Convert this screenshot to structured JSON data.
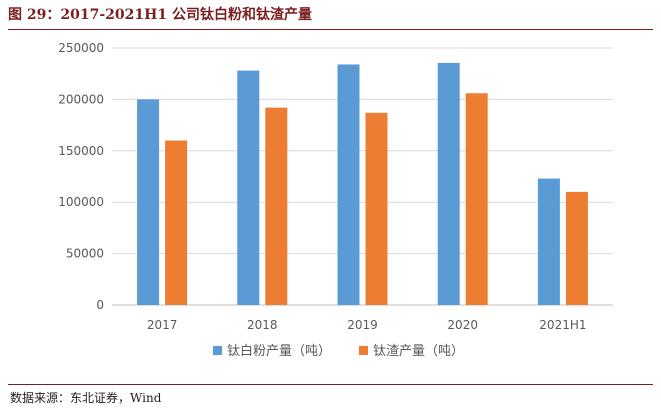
{
  "figure": {
    "title": "图 29：2017-2021H1 公司钛白粉和钛渣产量",
    "source": "数据来源：东北证券，Wind"
  },
  "chart_data": {
    "type": "bar",
    "categories": [
      "2017",
      "2018",
      "2019",
      "2020",
      "2021H1"
    ],
    "series": [
      {
        "name": "钛白粉产量（吨）",
        "color": "#5b9bd5",
        "values": [
          200000,
          228000,
          234000,
          235500,
          123000
        ]
      },
      {
        "name": "钛渣产量（吨）",
        "color": "#ed7d31",
        "values": [
          160000,
          192000,
          187000,
          206000,
          110000
        ]
      }
    ],
    "ylim": [
      0,
      250000
    ],
    "yticks": [
      0,
      50000,
      100000,
      150000,
      200000,
      250000
    ],
    "grid": true,
    "legend": "bottom"
  }
}
